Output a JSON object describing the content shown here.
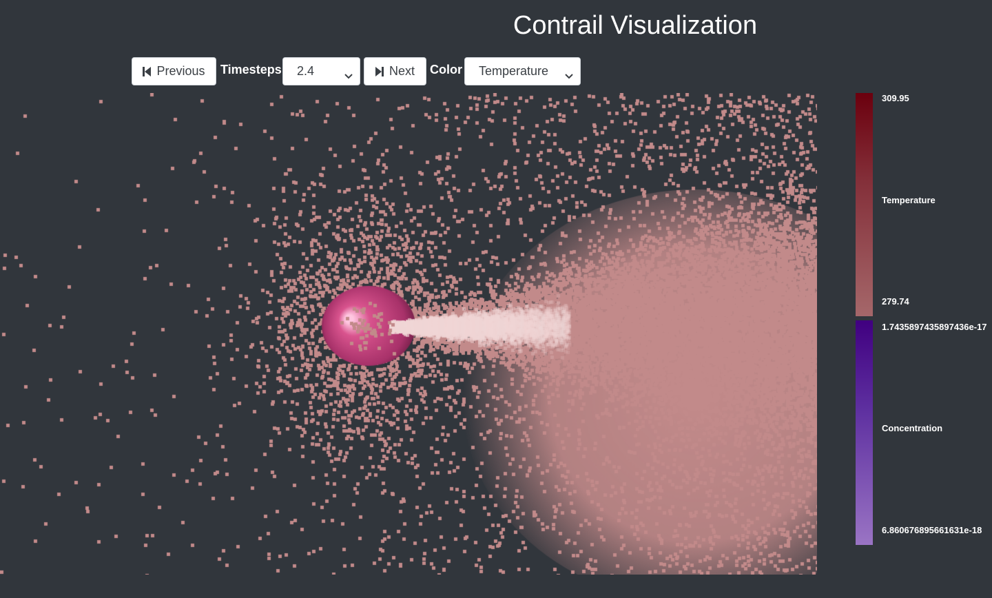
{
  "header": {
    "title": "Contrail Visualization"
  },
  "toolbar": {
    "previous_label": "Previous",
    "previous_icon": "skip-back-icon",
    "timesteps_label": "Timesteps",
    "timesteps_value": "2.4",
    "next_label": "Next",
    "next_icon": "skip-forward-icon",
    "color_label": "Color",
    "color_value": "Temperature"
  },
  "legend": {
    "temperature": {
      "max": "309.95",
      "name": "Temperature",
      "min": "279.74",
      "colors": [
        "#6b000e",
        "#a5676a"
      ]
    },
    "concentration": {
      "max": "1.7435897435897436e-17",
      "name": "Concentration",
      "min": "6.860676895661631e-18",
      "colors": [
        "#400080",
        "#9a74c4"
      ]
    }
  },
  "scene": {
    "background": "#31363c",
    "particle_color": "#c28a8a",
    "engine_color": "#d9548e",
    "plume_color": "#f0d5d5"
  }
}
